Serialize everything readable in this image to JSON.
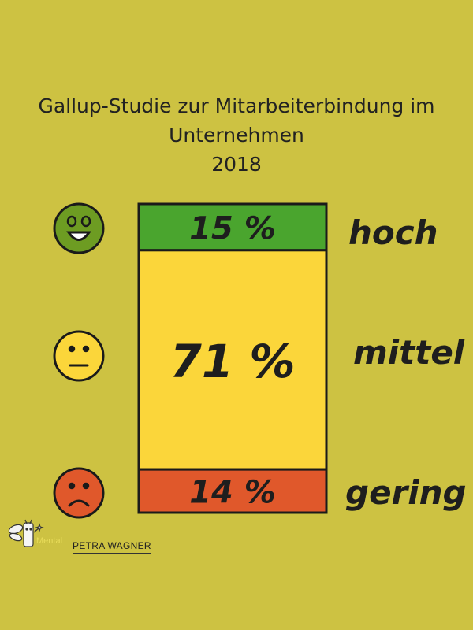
{
  "title": {
    "line1": "Gallup-Studie zur Mitarbeiterbindung im",
    "line2": "Unternehmen",
    "line3": "2018"
  },
  "chart_data": {
    "type": "bar",
    "stacked": true,
    "title": "Gallup-Studie zur Mitarbeiterbindung im Unternehmen 2018",
    "categories": [
      "hoch",
      "mittel",
      "gering"
    ],
    "values": [
      15,
      71,
      14
    ],
    "value_labels": [
      "15 %",
      "71 %",
      "14 %"
    ],
    "colors": [
      "#4aa52e",
      "#fbd63a",
      "#e0582b"
    ],
    "face_icons": [
      "happy-face-icon",
      "neutral-face-icon",
      "sad-face-icon"
    ],
    "face_colors": [
      "#6d9c22",
      "#fbd63a",
      "#e0582b"
    ],
    "ylim": [
      0,
      100
    ]
  },
  "logo": {
    "name": "PETRA WAGNER",
    "icon": "fairy-icon"
  }
}
